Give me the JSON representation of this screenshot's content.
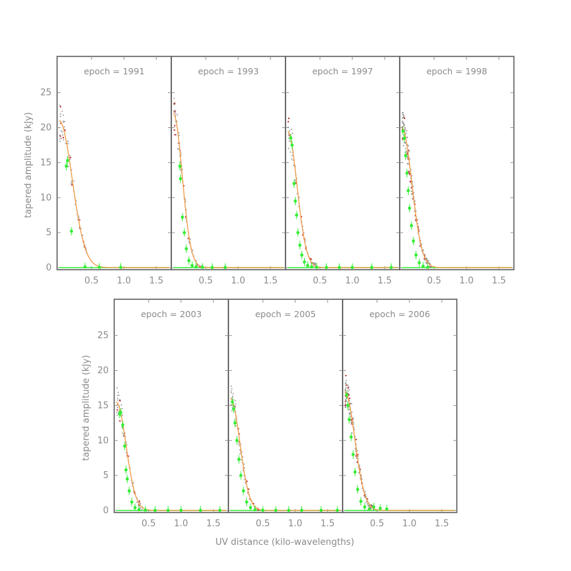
{
  "figure": {
    "ylabel": "tapered amplitude (kJy)",
    "xlabel": "UV distance (kilo-wavelengths)"
  },
  "colors": {
    "model_curve": "#f0a050",
    "binned_points": "#33ee33",
    "visibilities": "#909090",
    "residual_marks": "#c43030",
    "axes": "#909090",
    "frame": "#606060"
  },
  "chart_data": [
    {
      "type": "scatter",
      "title": "epoch = 1991",
      "xlim": [
        0,
        1.7
      ],
      "ylim": [
        0,
        29
      ],
      "xticks": [
        "0.5",
        "1.0",
        "1.5"
      ],
      "yticks": [
        "0",
        "5",
        "10",
        "15",
        "20",
        "25"
      ],
      "model_curve": {
        "peak": 21,
        "scale": 0.2
      },
      "series": [
        {
          "name": "",
          "x": [
            0.11,
            0.13,
            0.19,
            0.4,
            0.62,
            0.95
          ],
          "y": [
            14.5,
            15.3,
            5.2,
            0.1,
            0.05,
            0.05
          ]
        }
      ]
    },
    {
      "type": "scatter",
      "title": "epoch = 1993",
      "xlim": [
        0,
        1.7
      ],
      "ylim": [
        0,
        29
      ],
      "xticks": [
        "0.5",
        "1.0",
        "1.5"
      ],
      "yticks": [
        "0",
        "5",
        "10",
        "15",
        "20",
        "25"
      ],
      "model_curve": {
        "peak": 22,
        "scale": 0.135
      },
      "series": [
        {
          "name": "",
          "x": [
            0.1,
            0.11,
            0.14,
            0.17,
            0.2,
            0.24,
            0.29,
            0.35,
            0.45,
            0.6,
            0.8
          ],
          "y": [
            14.5,
            12.7,
            7.2,
            5.0,
            2.7,
            1.0,
            0.3,
            0.1,
            0.05,
            0.02,
            0.02
          ]
        }
      ]
    },
    {
      "type": "scatter",
      "title": "epoch = 1997",
      "xlim": [
        0,
        1.7
      ],
      "ylim": [
        0,
        29
      ],
      "xticks": [
        "0.5",
        "1.0",
        "1.5"
      ],
      "yticks": [
        "0",
        "5",
        "10",
        "15",
        "20",
        "25"
      ],
      "model_curve": {
        "peak": 19.5,
        "scale": 0.145
      },
      "series": [
        {
          "name": "",
          "x": [
            0.05,
            0.07,
            0.1,
            0.12,
            0.14,
            0.16,
            0.19,
            0.22,
            0.26,
            0.31,
            0.37,
            0.45,
            0.6,
            0.8,
            1.0,
            1.3,
            1.6
          ],
          "y": [
            18.5,
            17.5,
            12.0,
            9.5,
            7.5,
            5.0,
            3.2,
            1.8,
            0.8,
            0.3,
            0.1,
            0.05,
            0.02,
            0.02,
            0.02,
            0.02,
            0.02
          ]
        }
      ]
    },
    {
      "type": "scatter",
      "title": "epoch = 1998",
      "xlim": [
        0,
        1.7
      ],
      "ylim": [
        0,
        29
      ],
      "xticks": [
        "0.5",
        "1.0",
        "1.5"
      ],
      "yticks": [
        "0",
        "5",
        "10",
        "15",
        "20",
        "25"
      ],
      "model_curve": {
        "peak": 20,
        "scale": 0.155
      },
      "series": [
        {
          "name": "",
          "x": [
            0.02,
            0.04,
            0.06,
            0.08,
            0.1,
            0.12,
            0.15,
            0.18,
            0.22,
            0.27,
            0.33,
            0.4
          ],
          "y": [
            19.5,
            18.5,
            16.0,
            13.5,
            11.0,
            8.5,
            6.0,
            3.8,
            1.8,
            0.7,
            0.2,
            0.05
          ]
        }
      ]
    },
    {
      "type": "scatter",
      "title": "epoch = 2003",
      "xlim": [
        0,
        1.7
      ],
      "ylim": [
        0,
        29
      ],
      "xticks": [
        "0.5",
        "1.0",
        "1.5"
      ],
      "yticks": [
        "0",
        "5",
        "10",
        "15",
        "20",
        "25"
      ],
      "model_curve": {
        "peak": 15.5,
        "scale": 0.15
      },
      "series": [
        {
          "name": "",
          "x": [
            0.05,
            0.07,
            0.1,
            0.13,
            0.15,
            0.17,
            0.2,
            0.24,
            0.29,
            0.35,
            0.45,
            0.6,
            0.8,
            1.0,
            1.3,
            1.6
          ],
          "y": [
            13.8,
            14.0,
            12.2,
            9.2,
            5.8,
            4.5,
            2.8,
            1.2,
            0.4,
            0.1,
            0.05,
            0.02,
            0.02,
            0.02,
            0.02,
            0.02
          ]
        }
      ]
    },
    {
      "type": "scatter",
      "title": "epoch = 2005",
      "xlim": [
        0,
        1.7
      ],
      "ylim": [
        0,
        29
      ],
      "xticks": [
        "0.5",
        "1.0",
        "1.5"
      ],
      "yticks": [
        "0",
        "5",
        "10",
        "15",
        "20",
        "25"
      ],
      "model_curve": {
        "peak": 16,
        "scale": 0.145
      },
      "series": [
        {
          "name": "",
          "x": [
            0.03,
            0.05,
            0.07,
            0.1,
            0.13,
            0.16,
            0.2,
            0.25,
            0.31,
            0.38,
            0.5,
            0.7,
            0.9,
            1.1,
            1.4,
            1.65
          ],
          "y": [
            15.5,
            14.5,
            12.5,
            10.0,
            7.3,
            5.0,
            2.8,
            1.2,
            0.4,
            0.1,
            0.03,
            0.02,
            0.02,
            0.02,
            0.02,
            0.02
          ]
        }
      ]
    },
    {
      "type": "scatter",
      "title": "epoch = 2006",
      "xlim": [
        0,
        1.7
      ],
      "ylim": [
        0,
        29
      ],
      "xticks": [
        "0.5",
        "1.0",
        "1.5"
      ],
      "yticks": [
        "0",
        "5",
        "10",
        "15",
        "20",
        "25"
      ],
      "model_curve": {
        "peak": 17,
        "scale": 0.155
      },
      "series": [
        {
          "name": "",
          "x": [
            0.03,
            0.05,
            0.07,
            0.1,
            0.13,
            0.16,
            0.2,
            0.25,
            0.31,
            0.38,
            0.45,
            0.55,
            0.65
          ],
          "y": [
            16.5,
            15.0,
            13.0,
            10.5,
            8.0,
            5.5,
            3.0,
            1.3,
            0.5,
            0.15,
            0.5,
            0.3,
            0.2
          ]
        }
      ]
    }
  ]
}
